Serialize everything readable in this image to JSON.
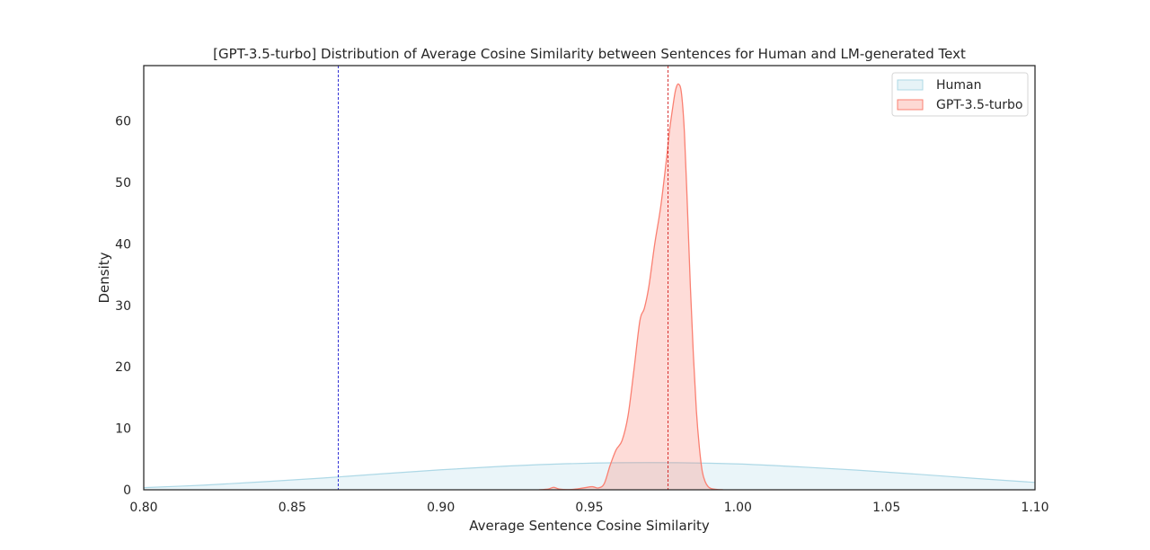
{
  "chart_data": {
    "type": "area",
    "title": "[GPT-3.5-turbo] Distribution of Average Cosine Similarity between Sentences for Human and LM-generated Text",
    "xlabel": "Average Sentence Cosine Similarity",
    "ylabel": "Density",
    "xlim": [
      0.8,
      1.1
    ],
    "ylim": [
      0,
      69
    ],
    "x_ticks": [
      0.8,
      0.85,
      0.9,
      0.95,
      1.0,
      1.05,
      1.1
    ],
    "x_tick_labels": [
      "0.80",
      "0.85",
      "0.90",
      "0.95",
      "1.00",
      "1.05",
      "1.10"
    ],
    "y_ticks": [
      0,
      10,
      20,
      30,
      40,
      50,
      60
    ],
    "y_tick_labels": [
      "0",
      "10",
      "20",
      "30",
      "40",
      "50",
      "60"
    ],
    "grid": false,
    "legend_position": "top-right",
    "series": [
      {
        "name": "Human",
        "color": "#add8e6",
        "x": [
          0.8,
          0.82,
          0.84,
          0.86,
          0.88,
          0.9,
          0.92,
          0.94,
          0.96,
          0.98,
          1.0,
          1.02,
          1.04,
          1.06,
          1.08,
          1.1
        ],
        "y": [
          0.35,
          0.75,
          1.3,
          1.9,
          2.6,
          3.25,
          3.8,
          4.2,
          4.4,
          4.4,
          4.2,
          3.75,
          3.2,
          2.55,
          1.85,
          1.2
        ]
      },
      {
        "name": "GPT-3.5-turbo",
        "color": "#fa8072",
        "x": [
          0.933,
          0.936,
          0.938,
          0.94,
          0.944,
          0.948,
          0.951,
          0.953,
          0.955,
          0.957,
          0.959,
          0.961,
          0.963,
          0.965,
          0.967,
          0.9685,
          0.97,
          0.972,
          0.974,
          0.976,
          0.977,
          0.978,
          0.979,
          0.98,
          0.981,
          0.982,
          0.983,
          0.984,
          0.985,
          0.986,
          0.987,
          0.988,
          0.989,
          0.99,
          0.991,
          0.993,
          0.995
        ],
        "y": [
          0,
          0.1,
          0.4,
          0.1,
          0.05,
          0.3,
          0.5,
          0.3,
          1.0,
          4.0,
          6.5,
          8.0,
          12.0,
          19.5,
          27.5,
          29.5,
          33.0,
          40.0,
          46.0,
          54.0,
          58.5,
          62.0,
          65.0,
          66.0,
          64.5,
          58.0,
          46.0,
          33.0,
          22.0,
          13.0,
          7.0,
          3.0,
          1.3,
          0.5,
          0.2,
          0.05,
          0
        ]
      }
    ],
    "reference_lines": [
      {
        "x": 0.8655,
        "color": "#0000cc",
        "style": "dashed"
      },
      {
        "x": 0.9765,
        "color": "#cc0000",
        "style": "dashed"
      }
    ]
  }
}
